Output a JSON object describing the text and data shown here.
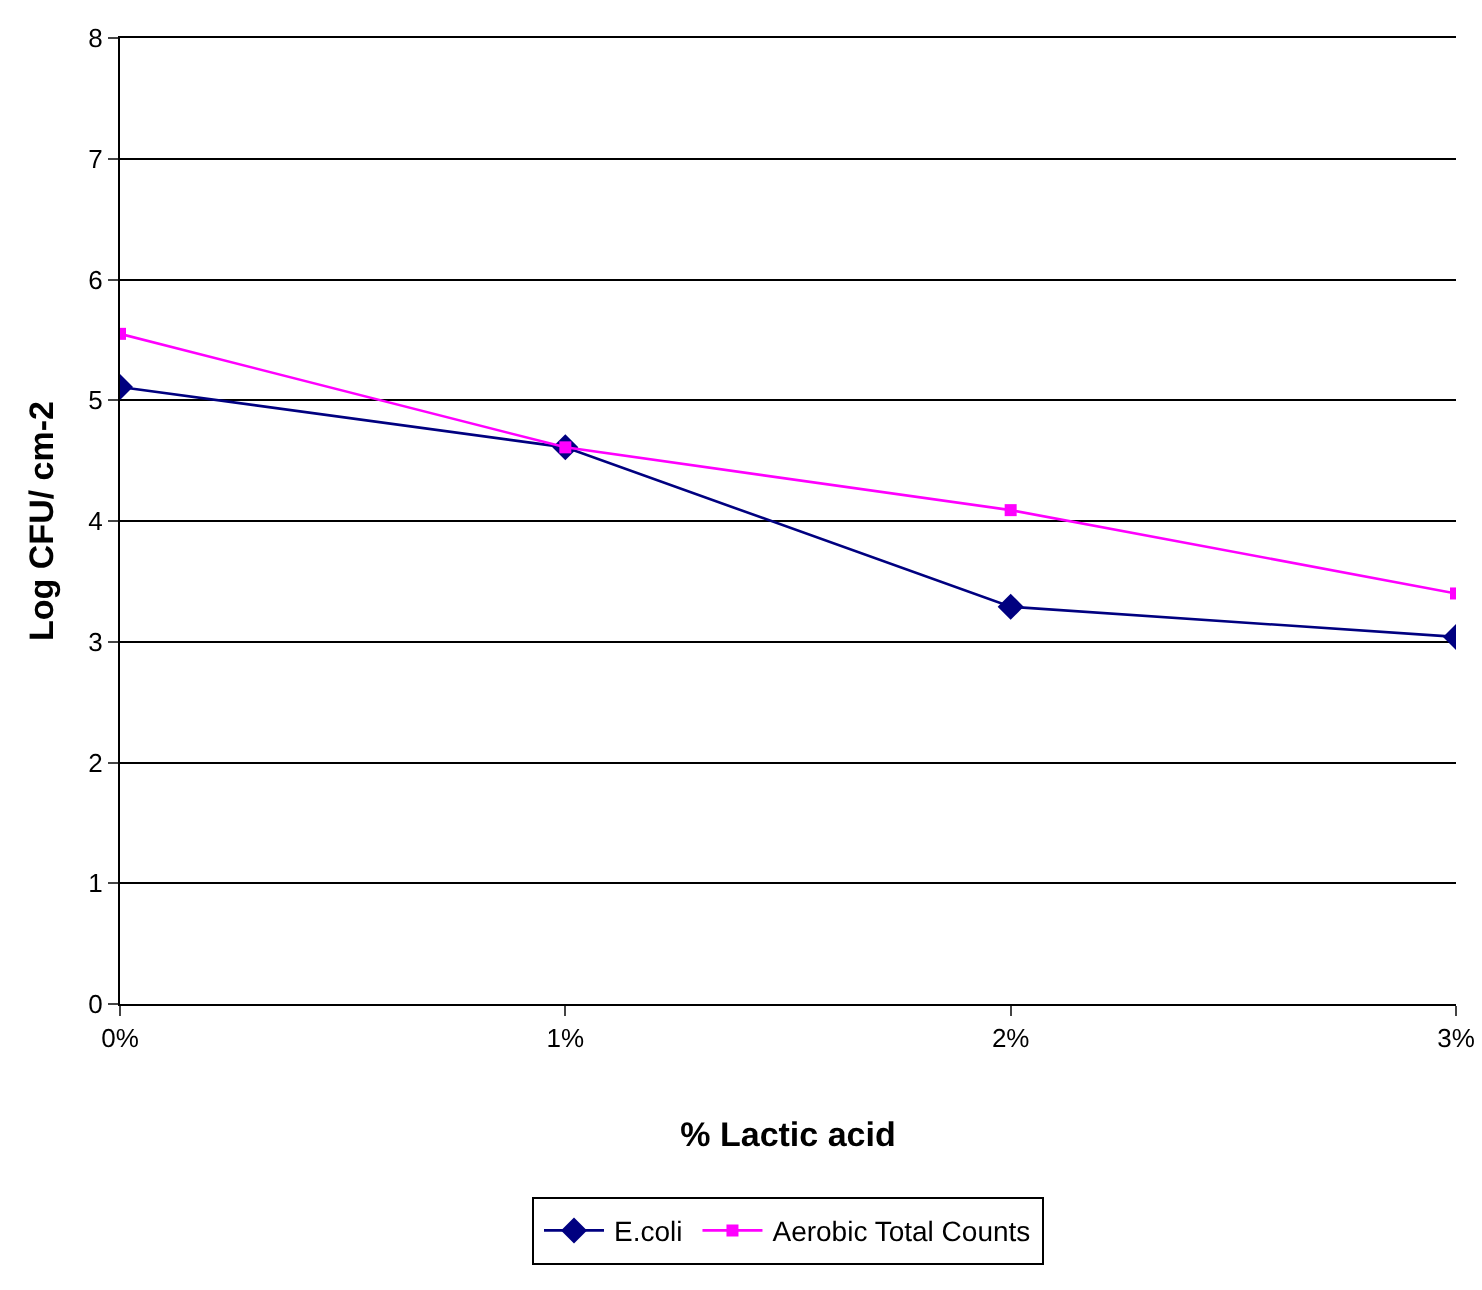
{
  "chart_data": {
    "type": "line",
    "xlabel": "% Lactic acid",
    "ylabel": "Log CFU/ cm-2",
    "categories": [
      "0%",
      "1%",
      "2%",
      "3%"
    ],
    "series": [
      {
        "name": "E.coli",
        "color": "#000080",
        "values": [
          5.11,
          4.61,
          3.29,
          3.04
        ],
        "marker": "diamond"
      },
      {
        "name": "Aerobic Total Counts",
        "color": "#ff00ff",
        "values": [
          5.55,
          4.61,
          4.09,
          3.4
        ],
        "marker": "square"
      }
    ],
    "ylim": [
      0,
      8
    ],
    "yticks": [
      0,
      1,
      2,
      3,
      4,
      5,
      6,
      7,
      8
    ],
    "grid": "y",
    "legend": "bottom",
    "line_style": "solid"
  }
}
